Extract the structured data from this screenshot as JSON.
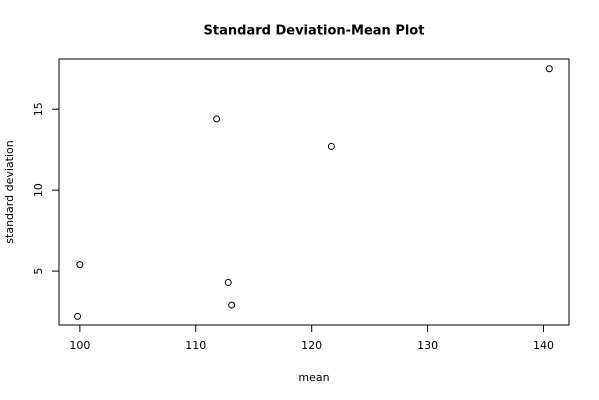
{
  "chart_data": {
    "type": "scatter",
    "title": "Standard Deviation-Mean Plot",
    "x_label": "mean",
    "y_label": "standard deviation",
    "x": [
      99.8,
      100.0,
      111.8,
      112.8,
      113.1,
      121.7,
      140.5
    ],
    "values": [
      2.2,
      5.4,
      14.4,
      4.3,
      2.9,
      12.7,
      17.5
    ],
    "xlim": [
      98.2,
      142.2
    ],
    "ylim": [
      1.67,
      18.1
    ],
    "xticks": [
      100,
      110,
      120,
      130,
      140
    ],
    "yticks": [
      5,
      10,
      15
    ],
    "color": "#000000",
    "grid": false
  }
}
